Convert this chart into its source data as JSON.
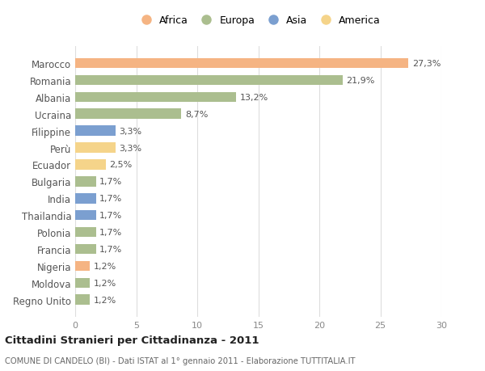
{
  "countries": [
    "Marocco",
    "Romania",
    "Albania",
    "Ucraina",
    "Filippine",
    "Perù",
    "Ecuador",
    "Bulgaria",
    "India",
    "Thailandia",
    "Polonia",
    "Francia",
    "Nigeria",
    "Moldova",
    "Regno Unito"
  ],
  "values": [
    27.3,
    21.9,
    13.2,
    8.7,
    3.3,
    3.3,
    2.5,
    1.7,
    1.7,
    1.7,
    1.7,
    1.7,
    1.2,
    1.2,
    1.2
  ],
  "labels": [
    "27,3%",
    "21,9%",
    "13,2%",
    "8,7%",
    "3,3%",
    "3,3%",
    "2,5%",
    "1,7%",
    "1,7%",
    "1,7%",
    "1,7%",
    "1,7%",
    "1,2%",
    "1,2%",
    "1,2%"
  ],
  "continents": [
    "Africa",
    "Europa",
    "Europa",
    "Europa",
    "Asia",
    "America",
    "America",
    "Europa",
    "Asia",
    "Asia",
    "Europa",
    "Europa",
    "Africa",
    "Europa",
    "Europa"
  ],
  "colors": {
    "Africa": "#F5B483",
    "Europa": "#ABBE8F",
    "Asia": "#7B9FD0",
    "America": "#F5D48A"
  },
  "legend_colors": {
    "Africa": "#F5B483",
    "Europa": "#ABBE8F",
    "Asia": "#7B9FD0",
    "America": "#F5D48A"
  },
  "legend_order": [
    "Africa",
    "Europa",
    "Asia",
    "America"
  ],
  "xlim": [
    0,
    30
  ],
  "xticks": [
    0,
    5,
    10,
    15,
    20,
    25,
    30
  ],
  "title": "Cittadini Stranieri per Cittadinanza - 2011",
  "subtitle": "COMUNE DI CANDELO (BI) - Dati ISTAT al 1° gennaio 2011 - Elaborazione TUTTITALIA.IT",
  "background_color": "#ffffff",
  "grid_color": "#dddddd",
  "bar_height": 0.6
}
